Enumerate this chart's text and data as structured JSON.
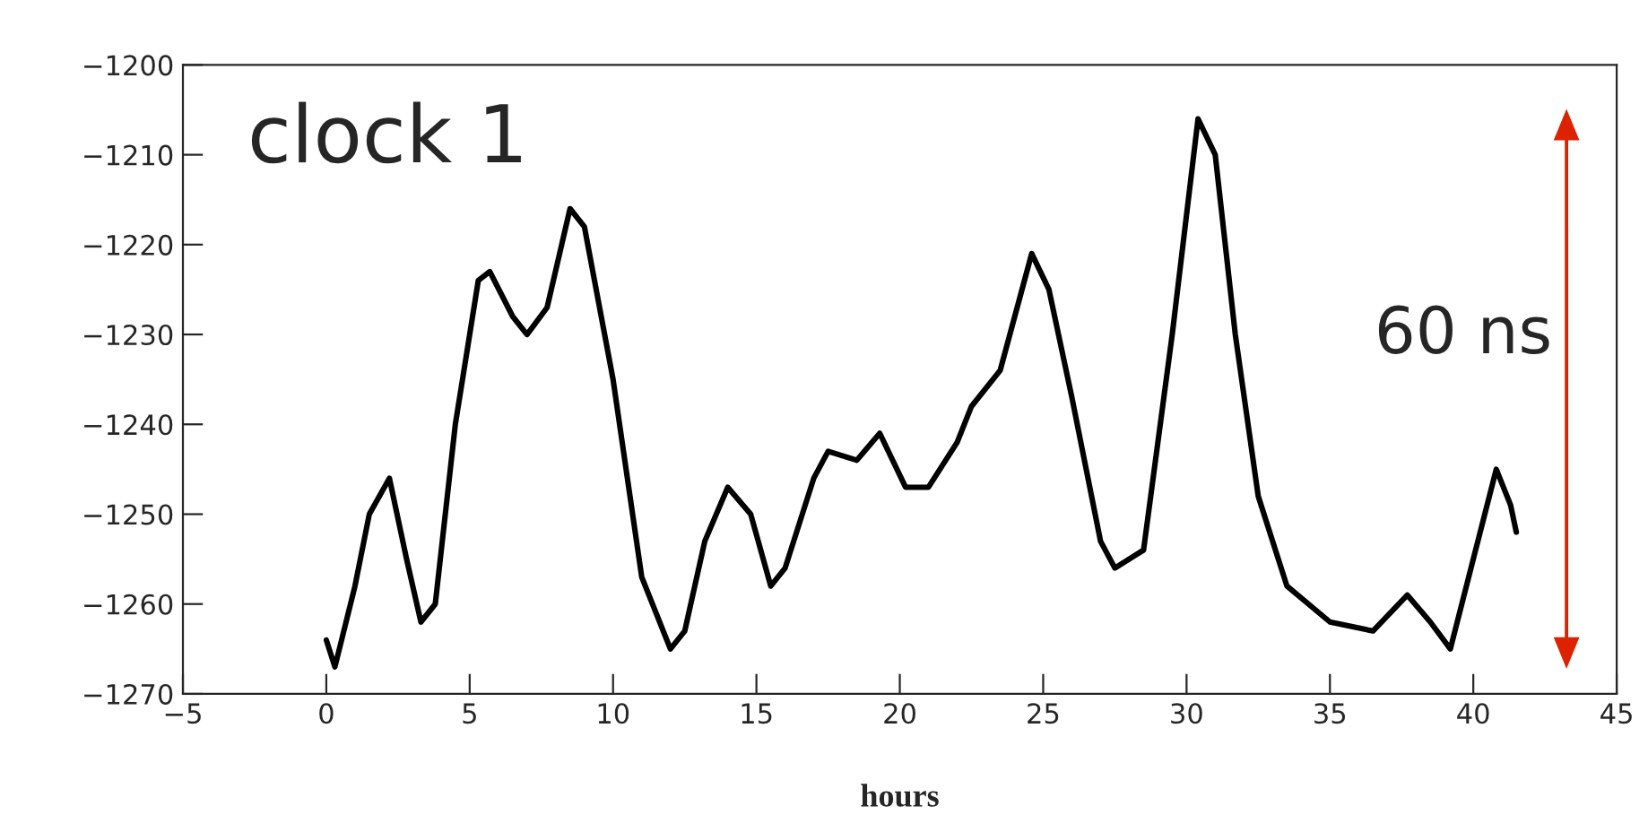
{
  "chart_data": {
    "type": "line",
    "xlabel": "hours",
    "annotations": [
      "clock 1",
      "60 ns"
    ],
    "x": [
      0,
      0.3,
      1,
      1.5,
      2.2,
      2.8,
      3.3,
      3.8,
      4.5,
      5.3,
      5.7,
      6.5,
      7,
      7.7,
      8.5,
      9,
      10,
      11,
      12,
      12.5,
      13.2,
      14,
      14.8,
      15.5,
      16,
      17,
      17.5,
      18.5,
      19.3,
      20.2,
      21,
      22,
      22.5,
      23.5,
      24.6,
      25.2,
      26,
      27,
      27.5,
      28.5,
      29.5,
      30.4,
      31,
      31.7,
      32.5,
      33.5,
      35,
      36.5,
      37.7,
      38.5,
      39.2,
      40,
      40.8,
      41.3,
      41.5
    ],
    "series": [
      {
        "color": "#000000",
        "values": [
          -1264,
          -1267,
          -1258,
          -1250,
          -1246,
          -1255,
          -1262,
          -1260,
          -1240,
          -1224,
          -1223,
          -1228,
          -1230,
          -1227,
          -1216,
          -1218,
          -1235,
          -1257,
          -1265,
          -1263,
          -1253,
          -1247,
          -1250,
          -1258,
          -1256,
          -1246,
          -1243,
          -1244,
          -1241,
          -1247,
          -1247,
          -1242,
          -1238,
          -1234,
          -1221,
          -1225,
          -1237,
          -1253,
          -1256,
          -1254,
          -1230,
          -1206,
          -1210,
          -1230,
          -1248,
          -1258,
          -1262,
          -1263,
          -1259,
          -1262,
          -1265,
          -1255,
          -1245,
          -1249,
          -1252
        ]
      }
    ],
    "xlim": [
      -5,
      45
    ],
    "xticks": [
      -5,
      0,
      5,
      10,
      15,
      20,
      25,
      30,
      35,
      40,
      45
    ],
    "ylim": [
      -1270,
      -1200
    ],
    "yticks": [
      -1270,
      -1260,
      -1250,
      -1240,
      -1230,
      -1220,
      -1210,
      -1200
    ],
    "grid": false
  }
}
